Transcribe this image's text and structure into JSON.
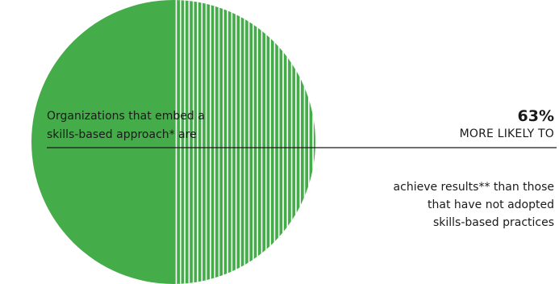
{
  "colors": {
    "fill": "#45ac4a",
    "stripe_gap": "#ffffff",
    "text": "#1a1a1a",
    "rule": "#1a1a1a"
  },
  "chart_data": {
    "type": "pie",
    "slices": [
      {
        "label": "solid",
        "value": 50,
        "pattern": "solid"
      },
      {
        "label": "striped",
        "value": 50,
        "pattern": "vertical-stripes"
      }
    ]
  },
  "text": {
    "left_line1": "Organizations that embed a",
    "left_line2": "skills-based approach* are",
    "stat_value": "63%",
    "stat_label": "MORE LIKELY TO",
    "desc_line1": "achieve results** than those",
    "desc_line2": "that have not adopted",
    "desc_line3": "skills-based practices"
  }
}
